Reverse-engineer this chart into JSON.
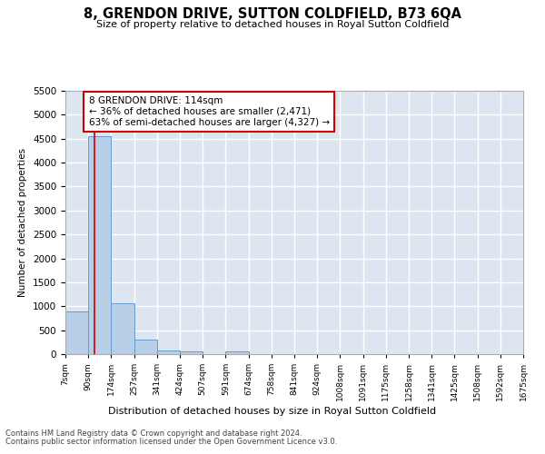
{
  "title": "8, GRENDON DRIVE, SUTTON COLDFIELD, B73 6QA",
  "subtitle": "Size of property relative to detached houses in Royal Sutton Coldfield",
  "xlabel": "Distribution of detached houses by size in Royal Sutton Coldfield",
  "ylabel": "Number of detached properties",
  "footnote1": "Contains HM Land Registry data © Crown copyright and database right 2024.",
  "footnote2": "Contains public sector information licensed under the Open Government Licence v3.0.",
  "property_size": 114,
  "annotation_title": "8 GRENDON DRIVE: 114sqm",
  "annotation_line1": "← 36% of detached houses are smaller (2,471)",
  "annotation_line2": "63% of semi-detached houses are larger (4,327) →",
  "bar_color": "#b8cfe8",
  "bar_edge_color": "#6699cc",
  "marker_line_color": "#cc0000",
  "annotation_box_color": "#ffffff",
  "annotation_box_edge": "#cc0000",
  "bg_color": "#dde6f0",
  "grid_color": "#ffffff",
  "ylim": [
    0,
    5500
  ],
  "yticks": [
    0,
    500,
    1000,
    1500,
    2000,
    2500,
    3000,
    3500,
    4000,
    4500,
    5000,
    5500
  ],
  "bin_edges": [
    7,
    90,
    174,
    257,
    341,
    424,
    507,
    591,
    674,
    758,
    841,
    924,
    1008,
    1091,
    1175,
    1258,
    1341,
    1425,
    1508,
    1592,
    1675
  ],
  "bin_labels": [
    "7sqm",
    "90sqm",
    "174sqm",
    "257sqm",
    "341sqm",
    "424sqm",
    "507sqm",
    "591sqm",
    "674sqm",
    "758sqm",
    "841sqm",
    "924sqm",
    "1008sqm",
    "1091sqm",
    "1175sqm",
    "1258sqm",
    "1341sqm",
    "1425sqm",
    "1508sqm",
    "1592sqm",
    "1675sqm"
  ],
  "bin_counts": [
    900,
    4560,
    1070,
    300,
    80,
    60,
    0,
    55,
    0,
    0,
    0,
    0,
    0,
    0,
    0,
    0,
    0,
    0,
    0,
    0
  ]
}
